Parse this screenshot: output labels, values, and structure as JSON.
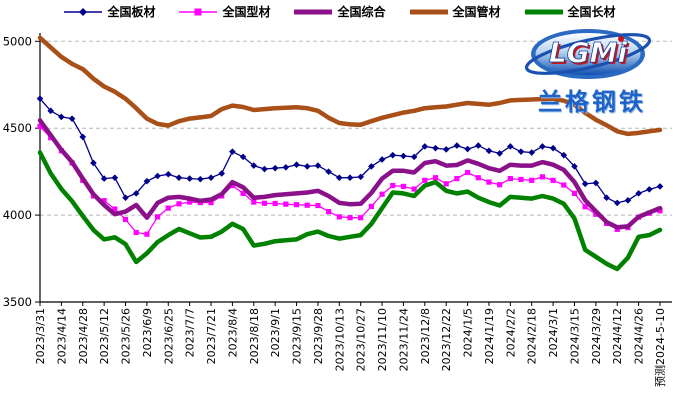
{
  "chart_data": {
    "type": "line",
    "title": "",
    "xlabel": "",
    "ylabel": "",
    "ylim": [
      3500,
      5050
    ],
    "yticks": [
      3500,
      4000,
      4500,
      5000
    ],
    "grid": "horizontal-dashed",
    "legend_position": "top",
    "x_labels": [
      "2023/3/31",
      "2023/4/14",
      "2023/4/28",
      "2023/5/12",
      "2023/5/26",
      "2023/6/9",
      "2023/6/25",
      "2023/7/7",
      "2023/7/21",
      "2023/8/4",
      "2023/8/18",
      "2023/9/1",
      "2023/9/15",
      "2023/9/28",
      "2023/10/13",
      "2023/10/27",
      "2023/11/10",
      "2023/11/24",
      "2023/12/8",
      "2023/12/22",
      "2024/1/5",
      "2024/1/19",
      "2024/2/2",
      "2024/2/18",
      "2024/3/1",
      "2024/3/15",
      "2024/3/29",
      "2024/4/12",
      "2024/4/26",
      "预测2024-5-10"
    ],
    "x_label_every_n_points": 2,
    "series": [
      {
        "name": "全国板材",
        "color": "#00008B",
        "width": 1.3,
        "marker": "diamond",
        "values": [
          4670,
          4600,
          4565,
          4555,
          4450,
          4300,
          4210,
          4215,
          4100,
          4125,
          4195,
          4225,
          4235,
          4215,
          4210,
          4207,
          4215,
          4240,
          4365,
          4335,
          4285,
          4265,
          4270,
          4275,
          4290,
          4280,
          4285,
          4250,
          4215,
          4215,
          4220,
          4280,
          4320,
          4345,
          4340,
          4335,
          4395,
          4385,
          4378,
          4400,
          4380,
          4400,
          4370,
          4355,
          4395,
          4365,
          4360,
          4395,
          4385,
          4345,
          4280,
          4180,
          4185,
          4100,
          4070,
          4085,
          4125,
          4148,
          4165
        ]
      },
      {
        "name": "全国型材",
        "color": "#FF00FF",
        "width": 1.3,
        "marker": "square",
        "values": [
          4510,
          4445,
          4370,
          4300,
          4200,
          4110,
          4083,
          4035,
          3975,
          3900,
          3890,
          3990,
          4040,
          4065,
          4075,
          4072,
          4072,
          4110,
          4170,
          4125,
          4075,
          4068,
          4067,
          4063,
          4060,
          4057,
          4055,
          4020,
          3990,
          3985,
          3985,
          4050,
          4120,
          4170,
          4165,
          4150,
          4200,
          4215,
          4180,
          4210,
          4245,
          4215,
          4190,
          4175,
          4210,
          4205,
          4200,
          4220,
          4200,
          4173,
          4125,
          4048,
          4005,
          3952,
          3918,
          3928,
          3988,
          4011,
          4025
        ]
      },
      {
        "name": "全国综合",
        "color": "#8B118B",
        "width": 4.5,
        "marker": "none",
        "values": [
          4545,
          4460,
          4375,
          4305,
          4210,
          4120,
          4058,
          4005,
          4020,
          4058,
          3985,
          4070,
          4100,
          4105,
          4095,
          4082,
          4090,
          4120,
          4190,
          4160,
          4100,
          4105,
          4115,
          4120,
          4125,
          4130,
          4140,
          4110,
          4070,
          4063,
          4065,
          4128,
          4210,
          4255,
          4255,
          4245,
          4300,
          4310,
          4285,
          4288,
          4315,
          4295,
          4270,
          4255,
          4290,
          4285,
          4285,
          4305,
          4290,
          4260,
          4190,
          4085,
          4022,
          3960,
          3930,
          3935,
          3990,
          4015,
          4040
        ]
      },
      {
        "name": "全国管材",
        "color": "#A85017",
        "width": 4.5,
        "marker": "none",
        "values": [
          5020,
          4965,
          4910,
          4870,
          4840,
          4785,
          4740,
          4710,
          4670,
          4615,
          4555,
          4525,
          4515,
          4540,
          4555,
          4562,
          4570,
          4610,
          4630,
          4622,
          4605,
          4610,
          4615,
          4618,
          4620,
          4615,
          4600,
          4560,
          4530,
          4522,
          4520,
          4540,
          4560,
          4575,
          4590,
          4600,
          4615,
          4620,
          4625,
          4635,
          4645,
          4640,
          4635,
          4645,
          4660,
          4663,
          4665,
          4668,
          4670,
          4658,
          4635,
          4588,
          4549,
          4517,
          4482,
          4467,
          4473,
          4482,
          4490
        ]
      },
      {
        "name": "全国长材",
        "color": "#008200",
        "width": 4.5,
        "marker": "none",
        "values": [
          4360,
          4240,
          4150,
          4080,
          3995,
          3915,
          3860,
          3872,
          3833,
          3730,
          3780,
          3845,
          3885,
          3920,
          3895,
          3871,
          3875,
          3905,
          3950,
          3920,
          3825,
          3835,
          3850,
          3855,
          3860,
          3890,
          3905,
          3880,
          3865,
          3875,
          3885,
          3950,
          4040,
          4130,
          4125,
          4110,
          4170,
          4190,
          4140,
          4125,
          4135,
          4100,
          4075,
          4055,
          4105,
          4100,
          4095,
          4110,
          4095,
          4065,
          3980,
          3800,
          3760,
          3720,
          3690,
          3755,
          3875,
          3885,
          3915
        ]
      }
    ]
  },
  "logo": {
    "acronym": "LGMi",
    "name": "兰格钢铁"
  }
}
